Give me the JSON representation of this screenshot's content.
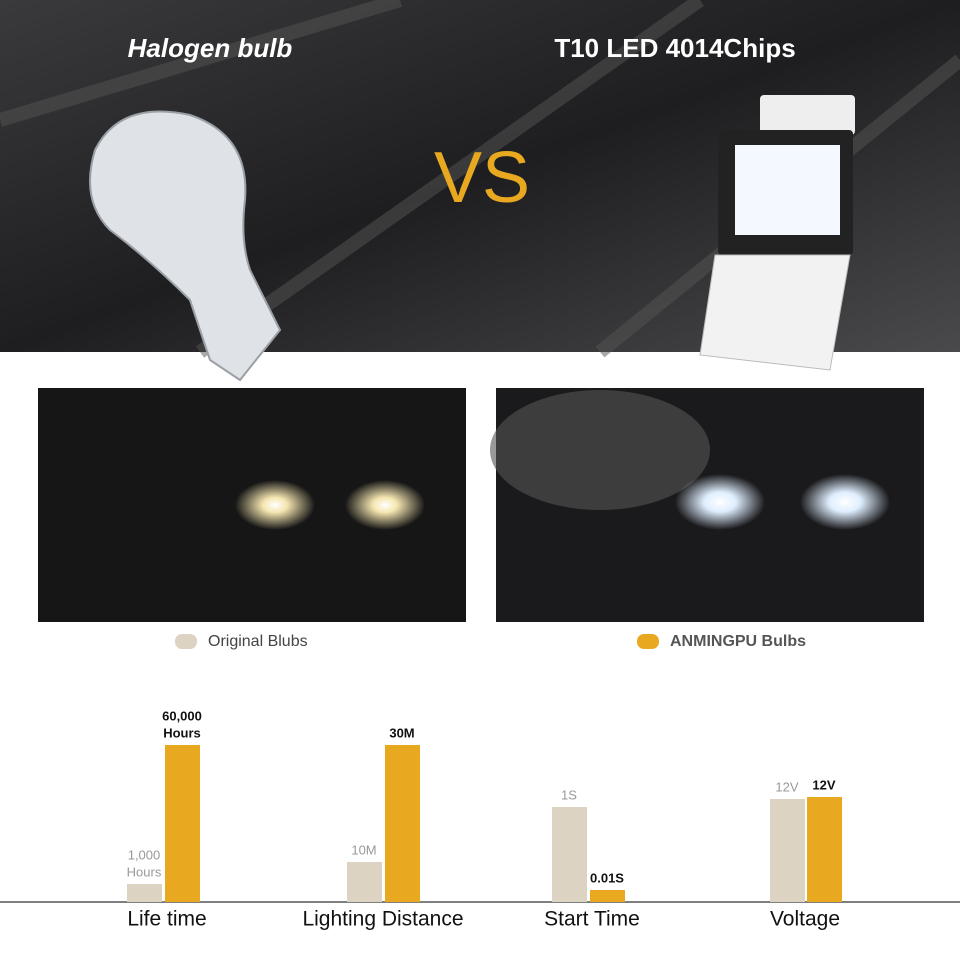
{
  "header": {
    "left": "Halogen bulb",
    "center": "VS",
    "right": "T10 LED 4014Chips"
  },
  "legend": [
    {
      "label": "Original Blubs",
      "color": "#ddd3c2"
    },
    {
      "label": "ANMINGPU Bulbs",
      "color": "#e8a920"
    }
  ],
  "comparisons": [
    {
      "label": "Life time",
      "original": [
        "1,000",
        "Hours"
      ],
      "anmingpu": [
        "60,000",
        "Hours"
      ]
    },
    {
      "label": "Lighting Distance",
      "original": [
        "10M"
      ],
      "anmingpu": [
        "30M"
      ]
    },
    {
      "label": "Start Time",
      "original": [
        "1S"
      ],
      "anmingpu": [
        "0.01S"
      ]
    },
    {
      "label": "Voltage",
      "original": [
        "12V"
      ],
      "anmingpu": [
        "12V"
      ]
    }
  ]
}
